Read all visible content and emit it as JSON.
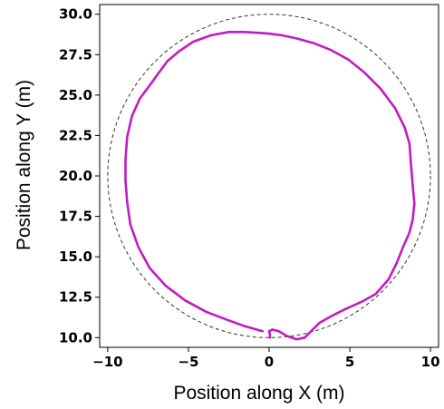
{
  "chart_data": {
    "type": "line",
    "title": "",
    "xlabel": "Position along X (m)",
    "ylabel": "Position along Y (m)",
    "xlim": [
      -10.5,
      10.5
    ],
    "ylim": [
      9.4,
      30.6
    ],
    "xticks": [
      -10,
      -5,
      0,
      5,
      10
    ],
    "xtick_labels": [
      "−10",
      "−5",
      "0",
      "5",
      "10"
    ],
    "yticks": [
      10.0,
      12.5,
      15.0,
      17.5,
      20.0,
      22.5,
      25.0,
      27.5,
      30.0
    ],
    "ytick_labels": [
      "10.0",
      "12.5",
      "15.0",
      "17.5",
      "20.0",
      "22.5",
      "25.0",
      "27.5",
      "30.0"
    ],
    "grid": false,
    "series": [
      {
        "style": "dashed",
        "color": "#333333",
        "shape": "circle",
        "center": [
          0,
          20
        ],
        "radius": 10
      },
      {
        "style": "solid",
        "color": "#c21bc2",
        "x": [
          -0.4,
          -1.5,
          -2.6,
          -3.9,
          -5.2,
          -6.4,
          -7.4,
          -8.1,
          -8.6,
          -8.8,
          -8.9,
          -8.9,
          -8.8,
          -8.5,
          -8.0,
          -7.4,
          -6.9,
          -6.3,
          -5.6,
          -4.7,
          -3.6,
          -2.5,
          -1.5,
          -0.7,
          0.0,
          0.8,
          1.7,
          2.8,
          3.8,
          4.9,
          5.9,
          6.9,
          7.8,
          8.4,
          8.7,
          8.8,
          8.9,
          9.0,
          8.9,
          8.7,
          8.3,
          7.9,
          7.4,
          6.6,
          5.7,
          4.8,
          3.8,
          3.1,
          2.7,
          2.2,
          1.7,
          1.1,
          0.6,
          0.2,
          0.0,
          0.05,
          0.05
        ],
        "y": [
          10.4,
          10.7,
          11.1,
          11.6,
          12.3,
          13.2,
          14.3,
          15.6,
          17.0,
          18.4,
          19.7,
          21.0,
          22.4,
          23.7,
          24.8,
          25.6,
          26.3,
          27.1,
          27.7,
          28.3,
          28.7,
          28.9,
          28.9,
          28.85,
          28.8,
          28.7,
          28.5,
          28.2,
          27.8,
          27.2,
          26.4,
          25.4,
          24.2,
          23.0,
          22.0,
          20.6,
          19.4,
          18.3,
          17.3,
          16.5,
          15.6,
          14.6,
          13.6,
          12.7,
          12.2,
          11.8,
          11.3,
          10.9,
          10.5,
          10.0,
          9.9,
          10.1,
          10.4,
          10.5,
          10.4,
          10.2,
          10.0
        ]
      }
    ]
  }
}
